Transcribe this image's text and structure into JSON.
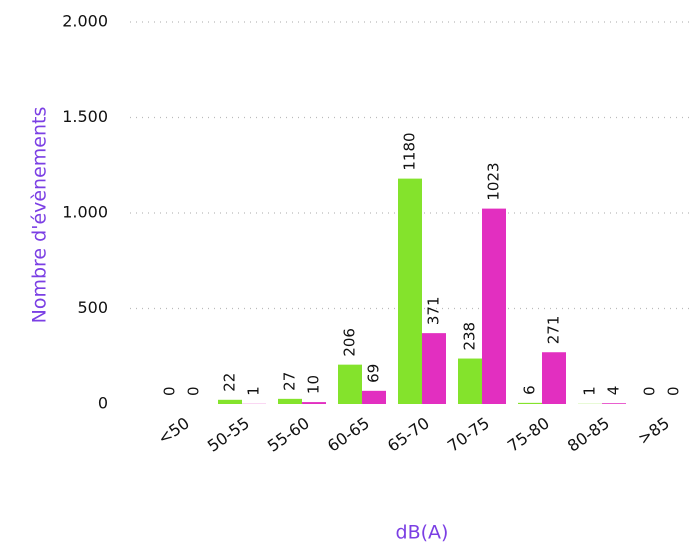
{
  "chart_data": {
    "type": "bar",
    "x_label": "dB(A)",
    "y_label": "Nombre d'évènements",
    "categories": [
      "<50",
      "50-55",
      "55-60",
      "60-65",
      "65-70",
      "70-75",
      "75-80",
      "80-85",
      ">85"
    ],
    "series": [
      {
        "color": "#84e32c",
        "values": [
          0,
          22,
          27,
          206,
          1180,
          238,
          6,
          1,
          0
        ]
      },
      {
        "color": "#e22fc0",
        "values": [
          0,
          1,
          10,
          69,
          371,
          1023,
          271,
          4,
          0
        ]
      }
    ],
    "ylim": [
      0,
      2000
    ],
    "yticks": [
      0,
      500,
      {
        "value": 1000,
        "label": "1.000"
      },
      {
        "value": 1500,
        "label": "1.500"
      },
      {
        "value": 2000,
        "label": "2.000"
      }
    ],
    "grid": true
  }
}
